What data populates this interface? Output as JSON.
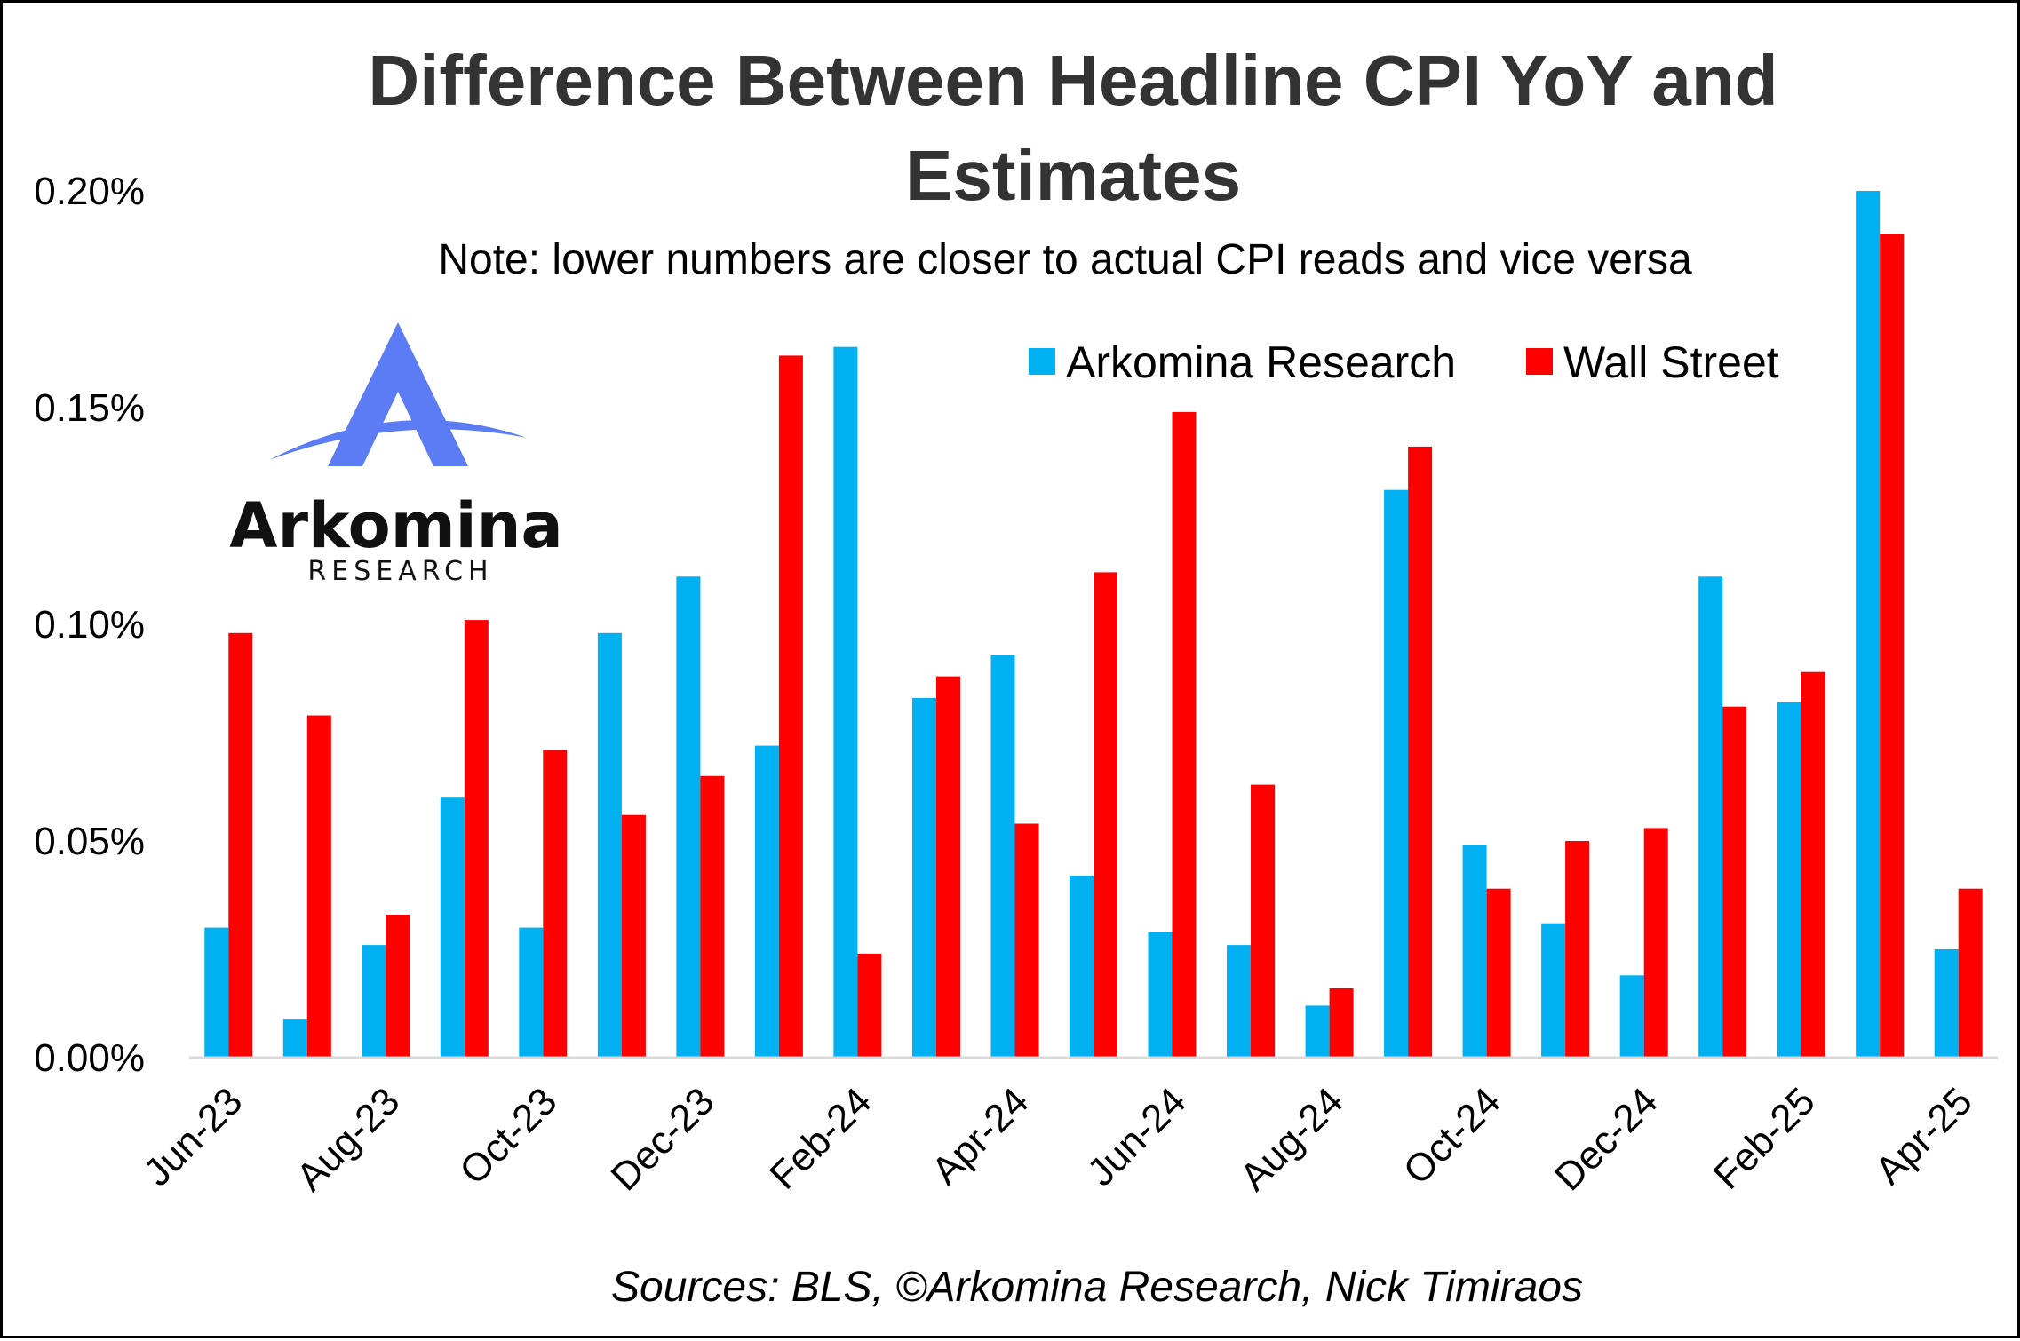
{
  "title_line1": "Difference Between Headline CPI YoY and",
  "title_line2": "Estimates",
  "subtitle": "Note: lower numbers are closer to actual CPI reads and vice versa",
  "source": "Sources: BLS, ©Arkomina Research, Nick Timiraos",
  "logo": {
    "word": "Arkomina",
    "sub": "RESEARCH",
    "color": "#5b7cf5"
  },
  "chart_data": {
    "type": "bar",
    "categories": [
      "Jun-23",
      "Jul-23",
      "Aug-23",
      "Sep-23",
      "Oct-23",
      "Nov-23",
      "Dec-23",
      "Jan-24",
      "Feb-24",
      "Mar-24",
      "Apr-24",
      "May-24",
      "Jun-24",
      "Jul-24",
      "Aug-24",
      "Sep-24",
      "Oct-24",
      "Nov-24",
      "Dec-24",
      "Jan-25",
      "Feb-25",
      "Mar-25",
      "Apr-25"
    ],
    "x_tick_labels": [
      "Jun-23",
      "Aug-23",
      "Oct-23",
      "Dec-23",
      "Feb-24",
      "Apr-24",
      "Jun-24",
      "Aug-24",
      "Oct-24",
      "Dec-24",
      "Feb-25",
      "Apr-25"
    ],
    "series": [
      {
        "name": "Arkomina Research",
        "color": "#00b0f0",
        "values": [
          0.03,
          0.009,
          0.026,
          0.06,
          0.03,
          0.098,
          0.111,
          0.072,
          0.164,
          0.083,
          0.093,
          0.042,
          0.029,
          0.026,
          0.012,
          0.131,
          0.049,
          0.031,
          0.019,
          0.111,
          0.082,
          0.2,
          0.025
        ]
      },
      {
        "name": "Wall Street",
        "color": "#ff0000",
        "values": [
          0.098,
          0.079,
          0.033,
          0.101,
          0.071,
          0.056,
          0.065,
          0.162,
          0.024,
          0.088,
          0.054,
          0.112,
          0.149,
          0.063,
          0.016,
          0.141,
          0.039,
          0.05,
          0.053,
          0.081,
          0.089,
          0.19,
          0.039
        ]
      }
    ],
    "y_ticks": [
      "0.00%",
      "0.05%",
      "0.10%",
      "0.15%",
      "0.20%"
    ],
    "y_tick_values": [
      0,
      0.05,
      0.1,
      0.15,
      0.2
    ],
    "ylim": [
      0,
      0.2
    ],
    "xlabel": "",
    "ylabel": "",
    "grid": false,
    "legend_position": "top-right"
  }
}
